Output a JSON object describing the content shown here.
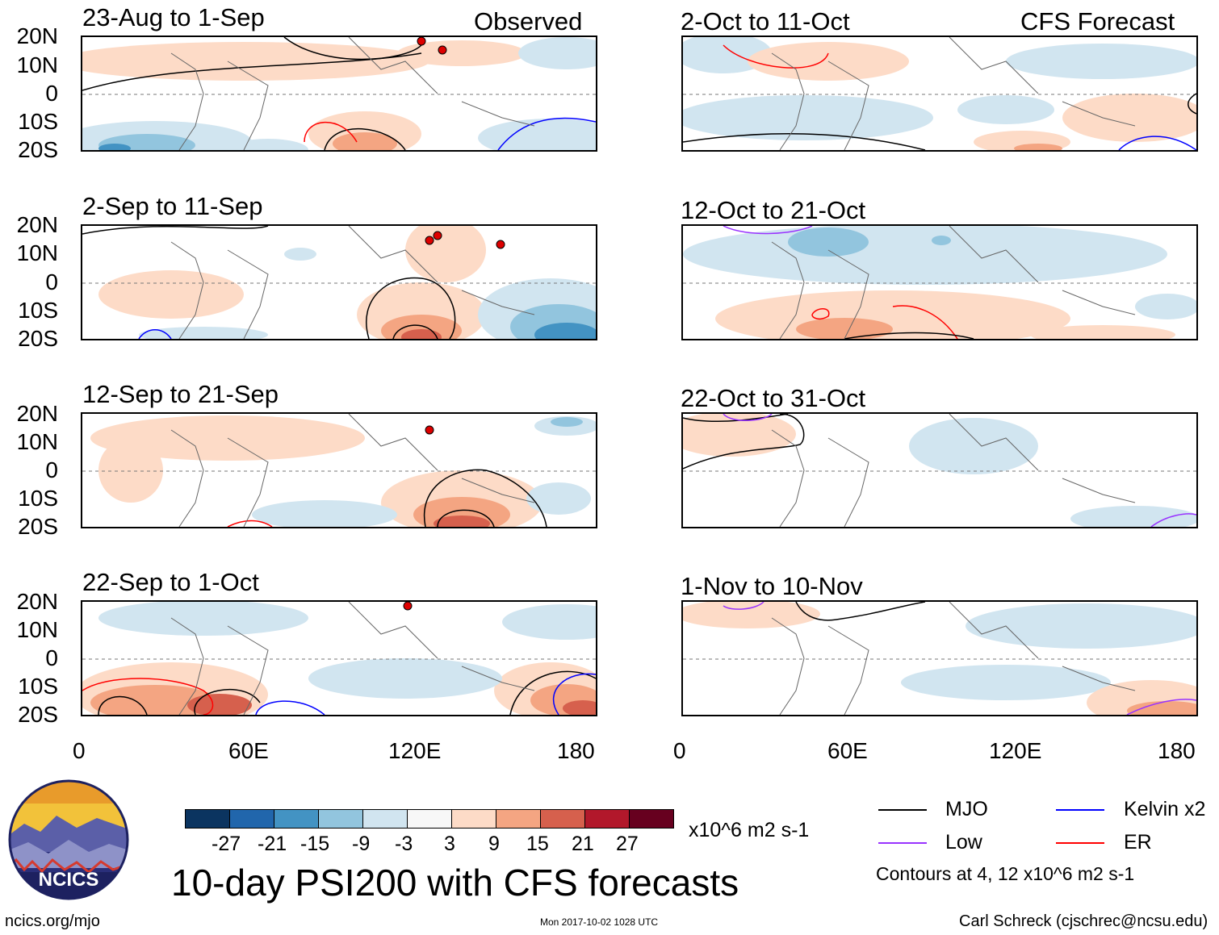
{
  "chart_data": {
    "type": "heatmap",
    "title": "10-day PSI200 with CFS forecasts",
    "units": "x10^6 m2 s-1",
    "x_ticks": [
      "0",
      "60E",
      "120E",
      "180"
    ],
    "y_ticks": [
      "20N",
      "10N",
      "0",
      "10S",
      "20S"
    ],
    "xlim": [
      0,
      180
    ],
    "ylim": [
      -20,
      20
    ],
    "observed_label": "Observed",
    "forecast_label": "CFS Forecast",
    "colorbar": {
      "levels": [
        "-27",
        "-21",
        "-15",
        "-9",
        "-3",
        "3",
        "9",
        "15",
        "21",
        "27"
      ],
      "colors": [
        "#0b3460",
        "#2166ac",
        "#4393c3",
        "#92c5de",
        "#d1e5f0",
        "#f7f7f7",
        "#fddbc7",
        "#f4a582",
        "#d6604d",
        "#b2182b",
        "#67001f"
      ]
    },
    "legend": {
      "items": [
        {
          "name": "MJO",
          "color": "#000000"
        },
        {
          "name": "Kelvin x2",
          "color": "#0000ff"
        },
        {
          "name": "Low",
          "color": "#9933ff"
        },
        {
          "name": "ER",
          "color": "#ff0000"
        }
      ],
      "contour_note": "Contours at 4, 12 x10^6 m2 s-1"
    },
    "panels": [
      {
        "period": "23-Aug to 1-Sep"
      },
      {
        "period": "2-Sep to 11-Sep"
      },
      {
        "period": "12-Sep to 21-Sep"
      },
      {
        "period": "22-Sep to 1-Oct"
      },
      {
        "period": "2-Oct to 11-Oct"
      },
      {
        "period": "12-Oct to 21-Oct"
      },
      {
        "period": "22-Oct to 31-Oct"
      },
      {
        "period": "1-Nov to 10-Nov"
      }
    ]
  },
  "logo": {
    "text": "NCICS"
  },
  "footer": {
    "url": "ncics.org/mjo",
    "timestamp": "Mon 2017-10-02 1028 UTC",
    "credit": "Carl Schreck (cjschrec@ncsu.edu)"
  }
}
